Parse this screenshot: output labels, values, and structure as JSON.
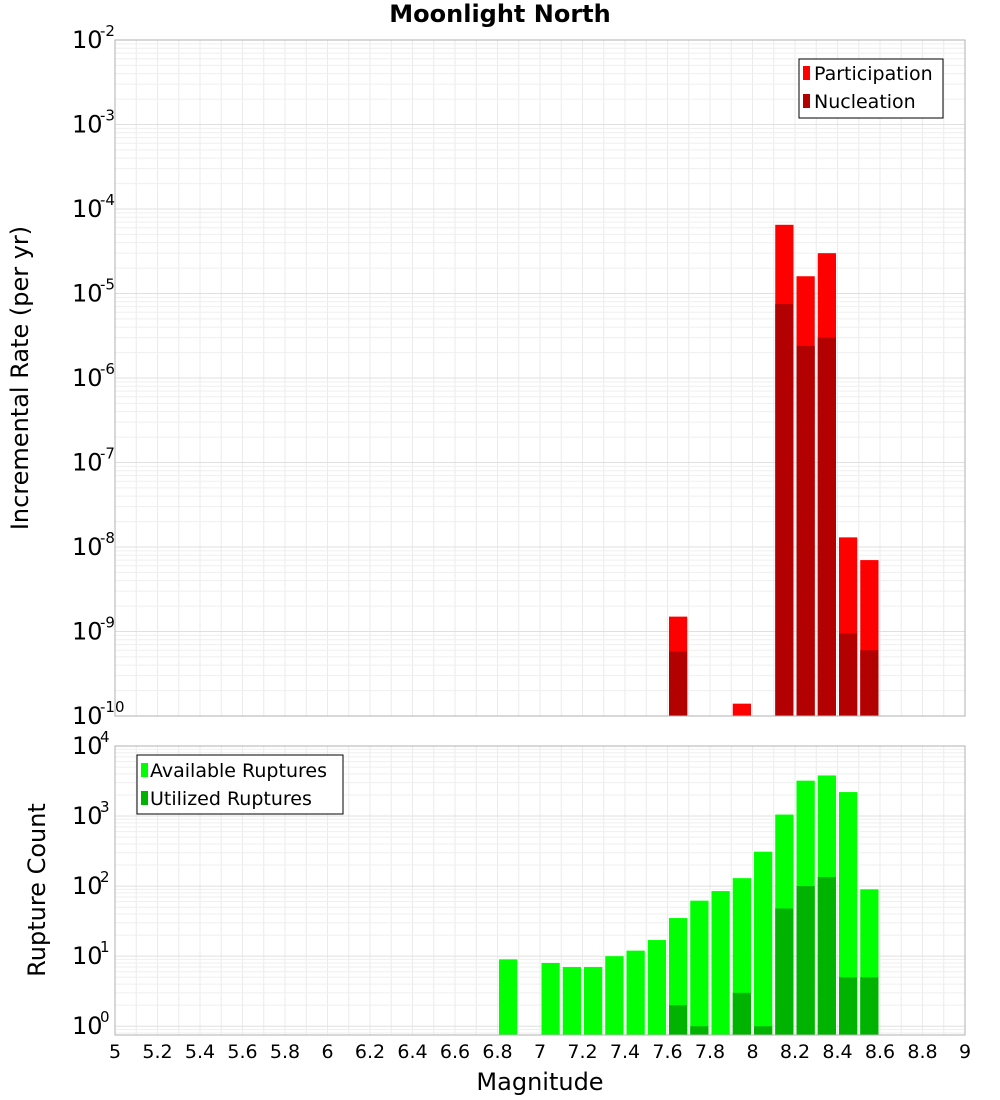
{
  "title": "Moonlight North",
  "xlabel": "Magnitude",
  "colors": {
    "participation": "#ff0000",
    "nucleation": "#b30000",
    "available": "#00ff00",
    "utilized": "#00b300"
  },
  "chart_data": [
    {
      "type": "bar",
      "ylabel": "Incremental Rate (per yr)",
      "yscale": "log",
      "ylim": [
        1e-10,
        0.01
      ],
      "ytick_exponents": [
        "-10",
        "-9",
        "-8",
        "-7",
        "-6",
        "-5",
        "-4",
        "-3",
        "-2"
      ],
      "xlim": [
        5,
        9
      ],
      "bin_width": 0.1,
      "grid": true,
      "legend_position": "top-right",
      "series": [
        {
          "name": "Participation",
          "color": "#ff0000",
          "points": [
            {
              "x": 7.65,
              "y": 1.5e-09
            },
            {
              "x": 7.95,
              "y": 1.4e-10
            },
            {
              "x": 8.15,
              "y": 6.5e-05
            },
            {
              "x": 8.25,
              "y": 1.6e-05
            },
            {
              "x": 8.35,
              "y": 3e-05
            },
            {
              "x": 8.45,
              "y": 1.3e-08
            },
            {
              "x": 8.55,
              "y": 7e-09
            }
          ]
        },
        {
          "name": "Nucleation",
          "color": "#b30000",
          "points": [
            {
              "x": 7.65,
              "y": 5.8e-10
            },
            {
              "x": 8.15,
              "y": 7.5e-06
            },
            {
              "x": 8.25,
              "y": 2.4e-06
            },
            {
              "x": 8.35,
              "y": 3e-06
            },
            {
              "x": 8.45,
              "y": 9.5e-10
            },
            {
              "x": 8.55,
              "y": 6e-10
            }
          ]
        }
      ]
    },
    {
      "type": "bar",
      "ylabel": "Rupture Count",
      "yscale": "log",
      "ylim": [
        0.75,
        10000
      ],
      "ytick_exponents": [
        "0",
        "1",
        "2",
        "3",
        "4"
      ],
      "xlim": [
        5,
        9
      ],
      "xticks": [
        "5",
        "5.2",
        "5.4",
        "5.6",
        "5.8",
        "6",
        "6.2",
        "6.4",
        "6.6",
        "6.8",
        "7",
        "7.2",
        "7.4",
        "7.6",
        "7.8",
        "8",
        "8.2",
        "8.4",
        "8.6",
        "8.8",
        "9"
      ],
      "bin_width": 0.1,
      "grid": true,
      "legend_position": "top-left",
      "series": [
        {
          "name": "Available Ruptures",
          "color": "#00ff00",
          "points": [
            {
              "x": 6.85,
              "y": 9
            },
            {
              "x": 7.05,
              "y": 8
            },
            {
              "x": 7.15,
              "y": 7
            },
            {
              "x": 7.25,
              "y": 7
            },
            {
              "x": 7.35,
              "y": 10
            },
            {
              "x": 7.45,
              "y": 12
            },
            {
              "x": 7.55,
              "y": 17
            },
            {
              "x": 7.65,
              "y": 35
            },
            {
              "x": 7.75,
              "y": 62
            },
            {
              "x": 7.85,
              "y": 85
            },
            {
              "x": 7.95,
              "y": 130
            },
            {
              "x": 8.05,
              "y": 310
            },
            {
              "x": 8.15,
              "y": 1050
            },
            {
              "x": 8.25,
              "y": 3200
            },
            {
              "x": 8.35,
              "y": 3800
            },
            {
              "x": 8.45,
              "y": 2200
            },
            {
              "x": 8.55,
              "y": 90
            }
          ]
        },
        {
          "name": "Utilized Ruptures",
          "color": "#00b300",
          "points": [
            {
              "x": 7.65,
              "y": 2
            },
            {
              "x": 7.75,
              "y": 1
            },
            {
              "x": 7.95,
              "y": 3
            },
            {
              "x": 8.05,
              "y": 1
            },
            {
              "x": 8.15,
              "y": 48
            },
            {
              "x": 8.25,
              "y": 100
            },
            {
              "x": 8.35,
              "y": 135
            },
            {
              "x": 8.45,
              "y": 5
            },
            {
              "x": 8.55,
              "y": 5
            }
          ]
        }
      ]
    }
  ]
}
